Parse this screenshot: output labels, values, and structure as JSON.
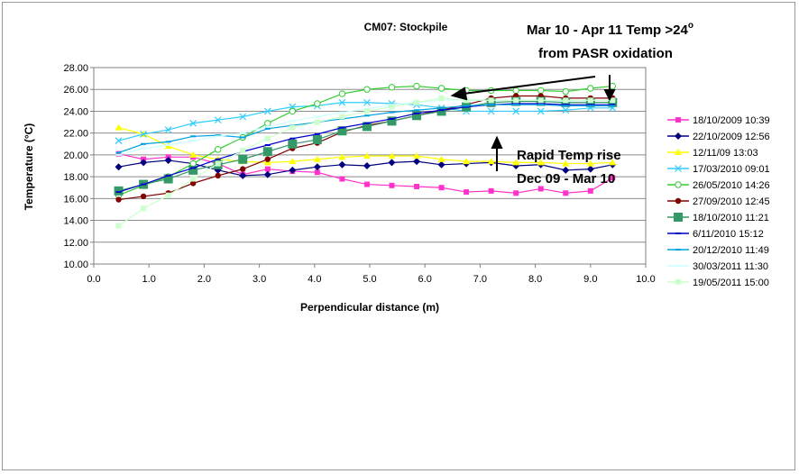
{
  "chart_data": {
    "type": "line",
    "title": "CM07: Stockpile",
    "xlabel": "Perpendicular distance (m)",
    "ylabel": "Temperature (°C)",
    "xlim": [
      0,
      10
    ],
    "ylim": [
      10,
      28
    ],
    "grid": "horizontal",
    "legend_position": "right",
    "x_ticks": [
      "0.0",
      "1.0",
      "2.0",
      "3.0",
      "4.0",
      "5.0",
      "6.0",
      "7.0",
      "8.0",
      "9.0",
      "10.0"
    ],
    "y_ticks": [
      "10.00",
      "12.00",
      "14.00",
      "16.00",
      "18.00",
      "20.00",
      "22.00",
      "24.00",
      "26.00",
      "28.00"
    ],
    "annotations": [
      {
        "line1": "Mar 10 - Apr 11 Temp >24",
        "sup": "o",
        "line2": "from PASR oxidation"
      },
      {
        "line1": "Rapid Temp rise",
        "line2": "Dec 09 - Mar 10"
      }
    ],
    "x": [
      0.45,
      0.9,
      1.35,
      1.8,
      2.25,
      2.7,
      3.15,
      3.6,
      4.05,
      4.5,
      4.95,
      5.4,
      5.85,
      6.3,
      6.75,
      7.2,
      7.65,
      8.1,
      8.55,
      9.0,
      9.4
    ],
    "series": [
      {
        "name": "18/10/2009 10:39",
        "color": "#ff33cc",
        "marker": "square",
        "values": [
          20.1,
          19.6,
          19.8,
          19.8,
          19.2,
          18.2,
          18.7,
          18.5,
          18.4,
          17.8,
          17.3,
          17.2,
          17.1,
          17.0,
          16.6,
          16.7,
          16.5,
          16.9,
          16.5,
          16.7,
          17.9
        ]
      },
      {
        "name": "22/10/2009 12:56",
        "color": "#000080",
        "marker": "diamond",
        "values": [
          18.9,
          19.3,
          19.5,
          19.2,
          18.6,
          18.1,
          18.2,
          18.6,
          18.9,
          19.1,
          19.0,
          19.3,
          19.4,
          19.1,
          19.2,
          19.3,
          19.0,
          19.1,
          18.6,
          18.7,
          19.1
        ]
      },
      {
        "name": "12/11/09 13:03",
        "color": "#ffff00",
        "marker": "triangle",
        "values": [
          22.5,
          21.9,
          20.8,
          20.0,
          19.6,
          19.4,
          19.3,
          19.4,
          19.6,
          19.8,
          19.9,
          19.9,
          19.9,
          19.6,
          19.4,
          19.4,
          19.3,
          19.3,
          19.2,
          19.2,
          19.3
        ]
      },
      {
        "name": "17/03/2010 09:01",
        "color": "#33ccff",
        "marker": "x",
        "values": [
          21.3,
          21.9,
          22.3,
          22.9,
          23.2,
          23.5,
          24.0,
          24.4,
          24.5,
          24.8,
          24.8,
          24.7,
          24.6,
          24.3,
          24.0,
          24.0,
          24.0,
          24.0,
          24.1,
          24.3,
          24.3
        ]
      },
      {
        "name": "26/05/2010 14:26",
        "color": "#33cc33",
        "marker": "circle",
        "values": [
          16.3,
          17.2,
          18.0,
          19.2,
          20.5,
          21.6,
          22.9,
          24.0,
          24.7,
          25.6,
          26.0,
          26.2,
          26.3,
          26.1,
          25.9,
          25.9,
          25.9,
          25.9,
          25.8,
          26.1,
          26.3
        ]
      },
      {
        "name": "27/09/2010 12:45",
        "color": "#800000",
        "marker": "circle-filled",
        "values": [
          15.9,
          16.2,
          16.5,
          17.4,
          18.1,
          18.7,
          19.6,
          20.6,
          21.1,
          22.1,
          22.7,
          23.1,
          23.6,
          24.1,
          24.6,
          25.2,
          25.4,
          25.4,
          25.2,
          25.2,
          25.2
        ]
      },
      {
        "name": "18/10/2010 11:21",
        "color": "#339966",
        "marker": "big-square",
        "values": [
          16.7,
          17.3,
          17.8,
          18.6,
          19.1,
          19.6,
          20.3,
          21.0,
          21.4,
          22.2,
          22.6,
          23.1,
          23.6,
          24.0,
          24.4,
          24.8,
          24.9,
          24.9,
          24.8,
          24.8,
          24.8
        ]
      },
      {
        "name": "6/11/2010 15:12",
        "color": "#0000cc",
        "marker": "dash",
        "values": [
          16.6,
          17.3,
          18.1,
          18.8,
          19.6,
          20.3,
          20.9,
          21.5,
          21.9,
          22.5,
          22.9,
          23.3,
          23.8,
          24.1,
          24.4,
          24.6,
          24.7,
          24.7,
          24.6,
          24.6,
          24.6
        ]
      },
      {
        "name": "20/12/2010 11:49",
        "color": "#00a0e0",
        "marker": "dash",
        "values": [
          20.2,
          21.0,
          21.2,
          21.7,
          21.8,
          21.6,
          22.4,
          22.7,
          23.0,
          23.3,
          23.6,
          23.9,
          24.1,
          24.3,
          24.5,
          24.6,
          24.6,
          24.6,
          24.5,
          24.5,
          24.5
        ]
      },
      {
        "name": "30/03/2011 11:30",
        "color": "#ccffff",
        "marker": "dash",
        "values": [
          20.0,
          20.6,
          20.9,
          21.3,
          21.7,
          22.0,
          22.6,
          23.1,
          23.5,
          23.9,
          24.2,
          24.6,
          24.8,
          25.0,
          25.1,
          25.0,
          25.0,
          25.0,
          24.9,
          25.0,
          25.0
        ]
      },
      {
        "name": "19/05/2011 15:00",
        "color": "#ccffcc",
        "marker": "square",
        "values": [
          13.5,
          15.1,
          16.3,
          17.8,
          19.2,
          20.4,
          21.5,
          22.5,
          23.0,
          23.5,
          24.0,
          24.4,
          24.8,
          25.2,
          25.0,
          25.0,
          25.0,
          25.0,
          25.0,
          25.0,
          25.0
        ]
      }
    ]
  }
}
